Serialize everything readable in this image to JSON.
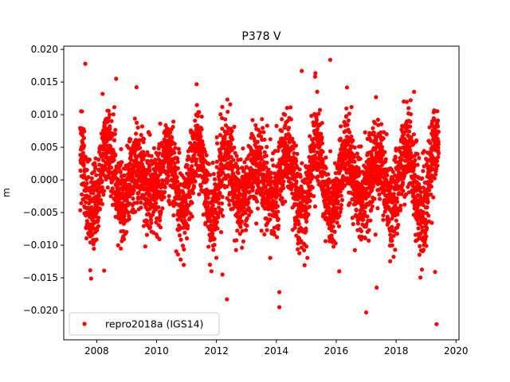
{
  "chart_data": {
    "type": "scatter",
    "title": "P378 V",
    "xlabel": "",
    "ylabel": "m",
    "xlim": [
      2006.9,
      2020.1
    ],
    "ylim": [
      -0.0245,
      0.0205
    ],
    "xticks": [
      2008,
      2010,
      2012,
      2014,
      2016,
      2018,
      2020
    ],
    "xtick_labels": [
      "2008",
      "2010",
      "2012",
      "2014",
      "2016",
      "2018",
      "2020"
    ],
    "yticks": [
      -0.02,
      -0.015,
      -0.01,
      -0.005,
      0.0,
      0.005,
      0.01,
      0.015,
      0.02
    ],
    "ytick_labels": [
      "−0.020",
      "−0.015",
      "−0.010",
      "−0.005",
      "0.000",
      "0.005",
      "0.010",
      "0.015",
      "0.020"
    ],
    "grid": false,
    "legend_position": "lower-left",
    "series": [
      {
        "name": "repro2018a (IGS14)",
        "color": "#ff0000",
        "marker": "circle",
        "time_range": [
          2007.45,
          2019.42
        ],
        "seasonal_amplitude": 0.005,
        "noise_std": 0.0033,
        "sampling": "daily",
        "notable_points": [
          {
            "x": 2007.62,
            "y": 0.0178
          },
          {
            "x": 2008.65,
            "y": 0.0155
          },
          {
            "x": 2009.33,
            "y": 0.0142
          },
          {
            "x": 2015.8,
            "y": 0.0184
          },
          {
            "x": 2014.85,
            "y": 0.0167
          },
          {
            "x": 2012.2,
            "y": -0.0145
          },
          {
            "x": 2012.35,
            "y": -0.0183
          },
          {
            "x": 2014.1,
            "y": -0.0195
          },
          {
            "x": 2014.1,
            "y": -0.0172
          },
          {
            "x": 2017.0,
            "y": -0.0203
          },
          {
            "x": 2008.25,
            "y": -0.0139
          },
          {
            "x": 2019.35,
            "y": -0.0221
          },
          {
            "x": 2019.3,
            "y": -0.0141
          },
          {
            "x": 2018.6,
            "y": 0.0135
          },
          {
            "x": 2016.1,
            "y": -0.014
          },
          {
            "x": 2017.35,
            "y": -0.0165
          }
        ]
      }
    ]
  }
}
